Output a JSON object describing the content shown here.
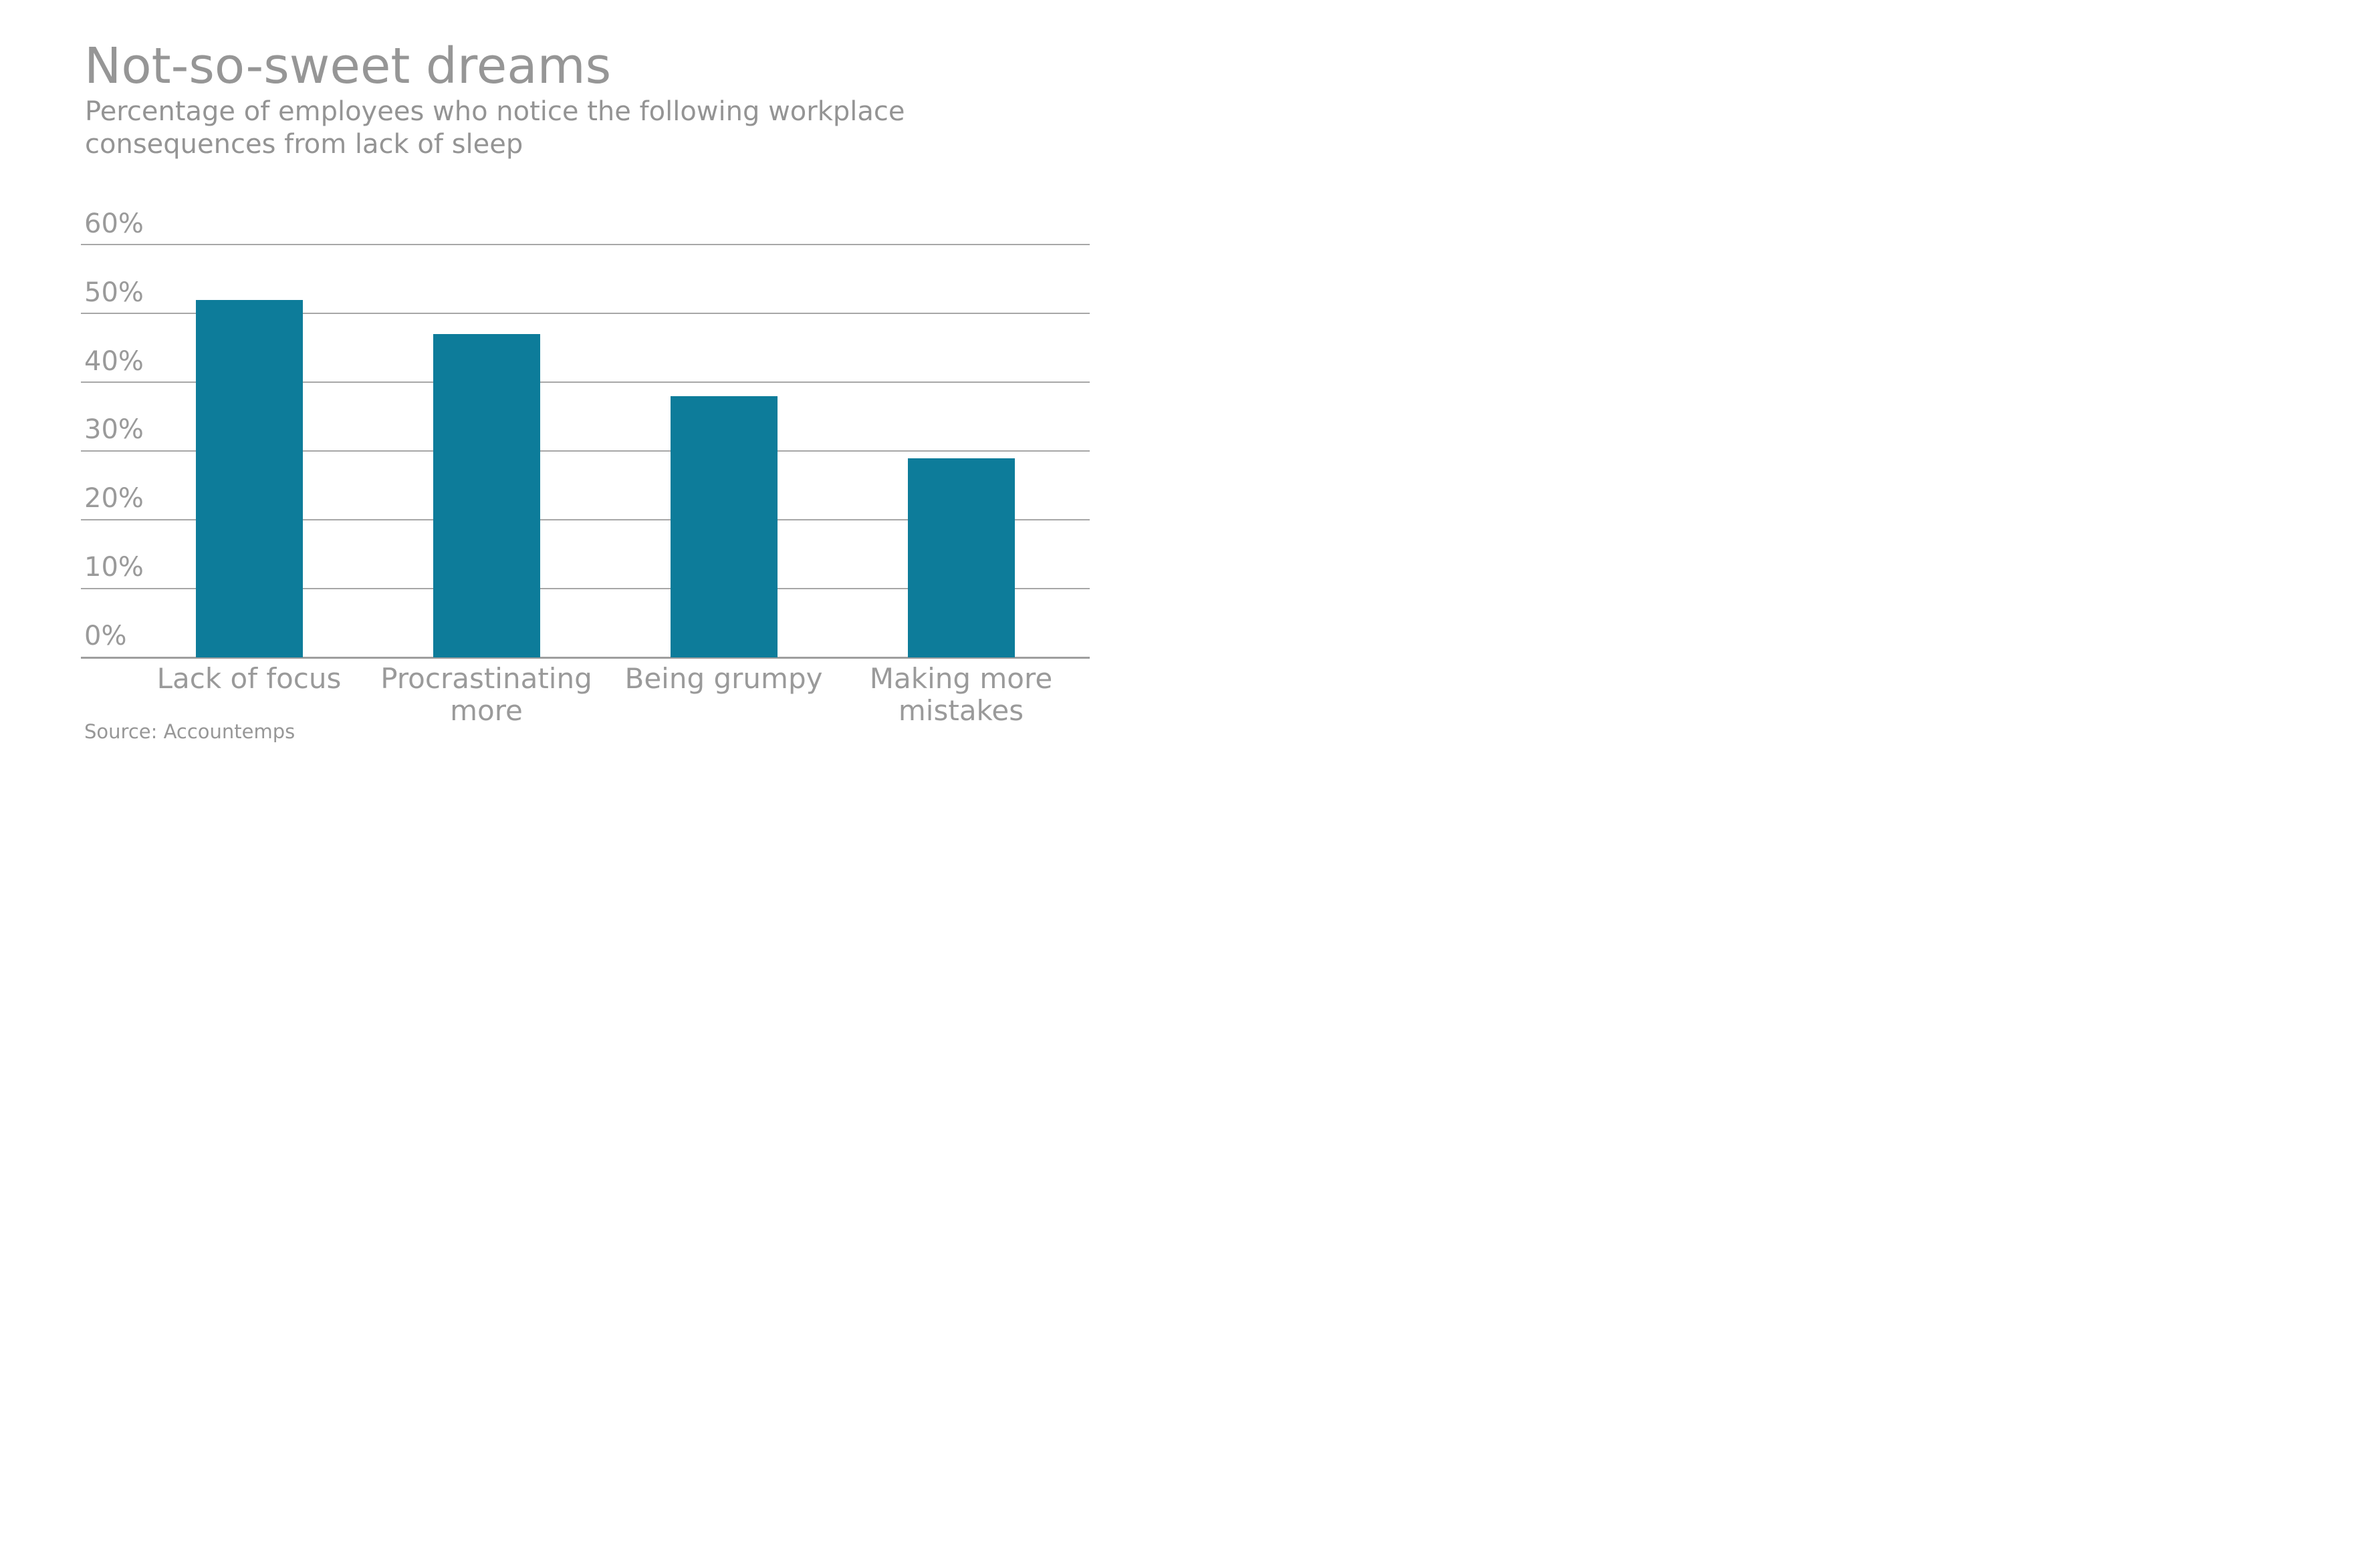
{
  "header": {
    "title": "Not-so-sweet dreams",
    "subtitle_line1": "Percentage of employees who notice the following workplace",
    "subtitle_line2": "consequences from lack of sleep"
  },
  "source_label": "Source: Accountemps",
  "colors": {
    "bar": "#0d7c9a",
    "gridline": "#a7a7a7",
    "axis_line": "#9e9e9e",
    "title_text": "#969696",
    "subtitle_text": "#949494",
    "label_text": "#9a9a9a"
  },
  "chart_data": {
    "type": "bar",
    "title": "Not-so-sweet dreams",
    "subtitle": "Percentage of employees who notice the following workplace consequences from lack of sleep",
    "categories": [
      "Lack of focus",
      "Procrastinating more",
      "Being grumpy",
      "Making more mistakes"
    ],
    "values": [
      52,
      47,
      38,
      29
    ],
    "unit": "%",
    "y_ticks": [
      "60%",
      "50%",
      "40%",
      "30%",
      "20%",
      "10%",
      "0%"
    ],
    "y_tick_values": [
      60,
      50,
      40,
      30,
      20,
      10,
      0
    ],
    "ylim": [
      0,
      60
    ],
    "grid": true,
    "legend": false,
    "xlabel": "",
    "ylabel": "",
    "bar_color": "#0d7c9a",
    "source": "Source: Accountemps"
  }
}
